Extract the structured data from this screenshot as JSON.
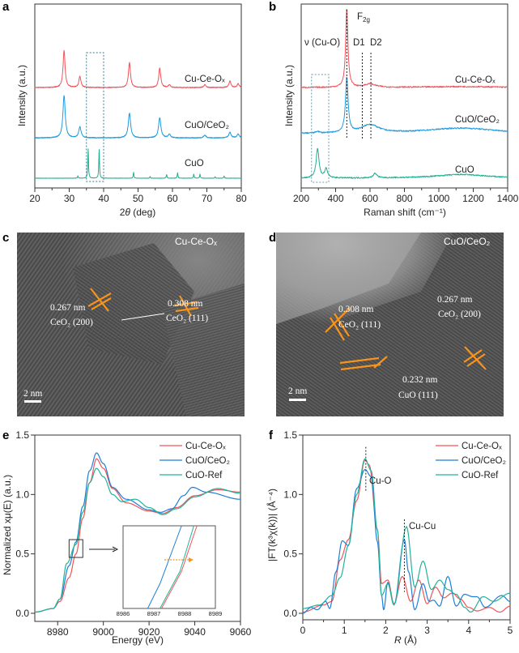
{
  "colors": {
    "cu_ce_ox": "#f0545a",
    "cuo_ceo2": "#1f9be0",
    "cuo": "#1fae92",
    "cuo_ref": "#22b39a",
    "blue_exafs": "#1f7fd6",
    "orange": "#f7941d"
  },
  "panels": {
    "a": {
      "letter": "a"
    },
    "b": {
      "letter": "b"
    },
    "c": {
      "letter": "c"
    },
    "d": {
      "letter": "d"
    },
    "e": {
      "letter": "e"
    },
    "f": {
      "letter": "f"
    }
  },
  "chart_data": [
    {
      "id": "a",
      "type": "line",
      "xlabel_main": "2",
      "xlabel_italic": "θ",
      "xlabel_rest": " (deg)",
      "ylabel": "Intensity (a.u.)",
      "xlim": [
        20,
        80
      ],
      "xticks": [
        20,
        30,
        40,
        50,
        60,
        70,
        80
      ],
      "grid": false,
      "highlight_box_x": [
        35,
        40
      ],
      "series": [
        {
          "name": "Cu-Ce-Oₓ",
          "color_key": "cu_ce_ox",
          "offset": 5.46,
          "width": 0.35,
          "peaks": [
            [
              28.5,
              2.0
            ],
            [
              33.1,
              0.6
            ],
            [
              47.5,
              1.35
            ],
            [
              56.3,
              1.05
            ],
            [
              59.1,
              0.15
            ],
            [
              69.4,
              0.15
            ],
            [
              76.7,
              0.35
            ],
            [
              79.1,
              0.2
            ]
          ]
        },
        {
          "name": "CuO/CeO₂",
          "color_key": "cuo_ceo2",
          "offset": 2.72,
          "width": 0.4,
          "peaks": [
            [
              28.5,
              2.3
            ],
            [
              33.1,
              0.6
            ],
            [
              47.5,
              1.35
            ],
            [
              56.3,
              1.1
            ],
            [
              59.1,
              0.2
            ],
            [
              69.4,
              0.15
            ],
            [
              76.7,
              0.3
            ],
            [
              79.1,
              0.2
            ]
          ]
        },
        {
          "name": "CuO",
          "color_key": "cuo",
          "offset": 0.53,
          "width": 0.12,
          "peaks": [
            [
              32.5,
              0.12
            ],
            [
              35.5,
              1.6
            ],
            [
              38.7,
              1.55
            ],
            [
              48.7,
              0.32
            ],
            [
              53.5,
              0.1
            ],
            [
              58.3,
              0.2
            ],
            [
              61.5,
              0.3
            ],
            [
              66.2,
              0.22
            ],
            [
              68.0,
              0.22
            ],
            [
              72.4,
              0.08
            ],
            [
              75.0,
              0.12
            ]
          ]
        }
      ]
    },
    {
      "id": "b",
      "type": "line",
      "xlabel": "Raman shift (cm⁻¹)",
      "ylabel": "Intensity (a.u.)",
      "xlim": [
        200,
        1400
      ],
      "xticks": [
        200,
        400,
        600,
        800,
        1000,
        1200,
        1400
      ],
      "grid": false,
      "highlight_box_x": [
        260,
        360
      ],
      "annotations": {
        "vcuo": "ν (Cu-O)",
        "f2g_main": "F",
        "f2g_sub": "2g",
        "d1": "D1",
        "d2": "D2"
      },
      "reference_lines": [
        465,
        555,
        605
      ],
      "series": [
        {
          "name": "Cu-Ce-Oₓ",
          "color_key": "cu_ce_ox",
          "offset": 5.46,
          "peaks": [
            [
              465,
              4.3,
              8
            ],
            [
              600,
              0.18,
              40
            ],
            [
              1130,
              0.05,
              250
            ]
          ]
        },
        {
          "name": "CuO/CeO₂",
          "color_key": "cuo_ceo2",
          "offset": 2.95,
          "peaks": [
            [
              465,
              3.0,
              9
            ],
            [
              600,
              0.45,
              60
            ],
            [
              1130,
              0.3,
              250
            ],
            [
              295,
              0.1,
              10
            ]
          ]
        },
        {
          "name": "CuO",
          "color_key": "cuo",
          "offset": 0.53,
          "peaks": [
            [
              295,
              1.6,
              10
            ],
            [
              345,
              0.5,
              10
            ],
            [
              630,
              0.25,
              12
            ],
            [
              1130,
              0.2,
              180
            ]
          ]
        }
      ]
    },
    {
      "id": "e",
      "type": "line",
      "xlabel": "Energy (eV)",
      "ylabel": "Normalized xμ(E) (a.u.)",
      "xlim": [
        8970,
        9060
      ],
      "ylim": [
        0,
        1.5
      ],
      "xticks": [
        8980,
        9000,
        9020,
        9040,
        9060
      ],
      "yticks": [
        "0.0",
        "0.5",
        "1.0",
        "1.5"
      ],
      "legend": "top-right",
      "grid": false,
      "series": [
        {
          "name": "Cu-Ce-Oₓ",
          "color_key": "cu_ce_ox",
          "x": [
            8970,
            8978,
            8981,
            8985,
            8988,
            8991,
            8994,
            8997,
            9000,
            9004,
            9010,
            9020,
            9026,
            9032,
            9040,
            9050,
            9060
          ],
          "y": [
            0.01,
            0.04,
            0.1,
            0.3,
            0.5,
            0.8,
            1.1,
            1.3,
            1.22,
            1.05,
            0.93,
            0.86,
            0.84,
            0.89,
            0.99,
            1.04,
            1.02
          ]
        },
        {
          "name": "CuO/CeO₂",
          "color_key": "blue_exafs",
          "x": [
            8970,
            8978,
            8981,
            8985,
            8988,
            8991,
            8994,
            8997,
            9000,
            9004,
            9010,
            9020,
            9025,
            9030,
            9035,
            9039,
            9045,
            9060
          ],
          "y": [
            0.01,
            0.04,
            0.12,
            0.4,
            0.6,
            0.9,
            1.2,
            1.35,
            1.26,
            1.06,
            0.96,
            0.87,
            0.85,
            0.88,
            0.99,
            1.06,
            1.02,
            0.96
          ]
        },
        {
          "name": "CuO-Ref",
          "color_key": "cuo_ref",
          "x": [
            8970,
            8978,
            8981,
            8984,
            8988,
            8991,
            8994,
            8997,
            9000,
            9004,
            9008,
            9014,
            9020,
            9026,
            9032,
            9040,
            9050,
            9060
          ],
          "y": [
            0.01,
            0.04,
            0.12,
            0.42,
            0.58,
            0.85,
            1.1,
            1.22,
            1.15,
            1.0,
            0.94,
            0.96,
            0.89,
            0.83,
            0.88,
            0.98,
            1.05,
            1.01
          ]
        }
      ],
      "inset": {
        "xlim": [
          8986,
          8989
        ],
        "xticks": [
          "8986",
          "8987",
          "8988",
          "8989"
        ],
        "series": [
          {
            "color_key": "blue_exafs",
            "x": [
              8986.8,
              8987.2,
              8987.9
            ],
            "y": [
              0,
              0.3,
              1
            ]
          },
          {
            "color_key": "cu_ce_ox",
            "x": [
              8987.25,
              8987.9,
              8988.4
            ],
            "y": [
              0,
              0.45,
              1
            ]
          },
          {
            "color_key": "cuo_ref",
            "x": [
              8987.2,
              8987.85,
              8988.3
            ],
            "y": [
              0,
              0.45,
              1
            ]
          }
        ]
      }
    },
    {
      "id": "f",
      "type": "line",
      "xlabel_italic": "R",
      "xlabel_rest": " (Å)",
      "ylabel": "|FT(k³χ(k))| (Å⁻⁴)",
      "xlim": [
        0,
        5
      ],
      "ylim": [
        0,
        1.5
      ],
      "xticks": [
        "0",
        "1",
        "2",
        "3",
        "4",
        "5"
      ],
      "yticks": [
        "0.0",
        "0.5",
        "1.0",
        "1.5"
      ],
      "legend": "top-right",
      "grid": false,
      "annotations": {
        "cu_o": "Cu-O",
        "cu_cu": "Cu-Cu"
      },
      "reference_lines": [
        1.52,
        2.45
      ],
      "series": [
        {
          "name": "Cu-Ce-Oₓ",
          "color_key": "cu_ce_ox",
          "x": [
            0,
            0.5,
            0.7,
            0.9,
            1.1,
            1.3,
            1.5,
            1.6,
            1.8,
            1.9,
            2.05,
            2.2,
            2.4,
            2.6,
            2.8,
            3.0,
            3.2,
            3.4,
            3.6,
            3.8,
            4.0,
            4.2,
            4.5,
            4.75,
            5.0
          ],
          "y": [
            0.01,
            0.07,
            0.1,
            0.45,
            0.62,
            0.95,
            1.29,
            1.25,
            0.7,
            0.25,
            0.28,
            0.08,
            0.31,
            0.1,
            0.28,
            0.08,
            0.22,
            0.13,
            0.17,
            0.12,
            0.05,
            0.02,
            0.05,
            0.01,
            0.06
          ]
        },
        {
          "name": "CuO/CeO₂",
          "color_key": "blue_exafs",
          "x": [
            0,
            0.2,
            0.35,
            0.55,
            0.65,
            0.8,
            0.95,
            1.1,
            1.3,
            1.5,
            1.65,
            1.8,
            1.9,
            1.95,
            2.05,
            2.2,
            2.45,
            2.55,
            2.7,
            2.9,
            3.05,
            3.15,
            3.3,
            3.5,
            3.7,
            3.9,
            4.1,
            4.2,
            4.4,
            4.8,
            5.0
          ],
          "y": [
            0.0,
            0.05,
            0.03,
            0.1,
            0.04,
            0.35,
            0.61,
            0.57,
            1.05,
            1.21,
            1.15,
            0.6,
            0.15,
            0.03,
            0.26,
            0.07,
            0.62,
            0.35,
            0.03,
            0.25,
            0.1,
            0.11,
            0.06,
            0.31,
            0.06,
            0.16,
            0.14,
            0.14,
            0.05,
            0.15,
            0.1
          ]
        },
        {
          "name": "CuO-Ref",
          "color_key": "cuo_ref",
          "x": [
            0,
            0.4,
            0.7,
            0.9,
            1.1,
            1.3,
            1.5,
            1.65,
            1.8,
            1.9,
            2.05,
            2.2,
            2.5,
            2.7,
            2.9,
            3.1,
            3.3,
            3.5,
            3.7,
            3.9,
            4.05,
            4.35,
            4.6,
            5.0
          ],
          "y": [
            0.04,
            0.07,
            0.15,
            0.3,
            0.57,
            1.0,
            1.3,
            1.2,
            0.7,
            0.15,
            0.25,
            0.07,
            0.73,
            0.22,
            0.44,
            0.2,
            0.28,
            0.2,
            0.16,
            0.05,
            0.01,
            0.14,
            0.1,
            0.17
          ]
        }
      ]
    }
  ],
  "tem_c": {
    "sample": "Cu-Ce-Oₓ",
    "d1": "0.267 nm",
    "plane1": "CeO₂ (200)",
    "d2": "0.308 nm",
    "plane2": "CeO₂ (111)",
    "scale": "2 nm"
  },
  "tem_d": {
    "sample": "CuO/CeO₂",
    "d1": "0.308 nm",
    "plane1": "CeO₂ (111)",
    "d2": "0.267 nm",
    "plane2": "CeO₂ (200)",
    "d3": "0.232 nm",
    "plane3": "CuO (111)",
    "scale": "2 nm"
  }
}
